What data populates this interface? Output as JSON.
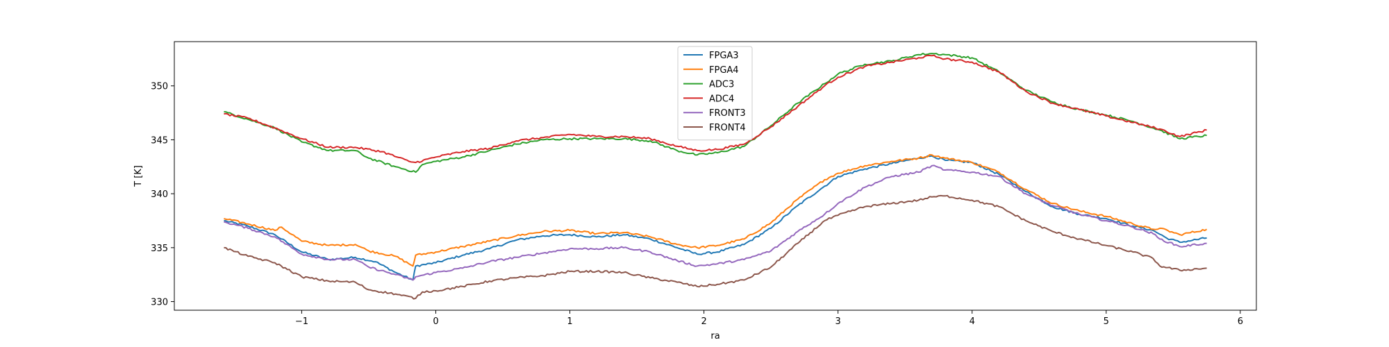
{
  "chart_data": {
    "type": "line",
    "title": "",
    "xlabel": "ra",
    "ylabel": "T [K]",
    "xlim": [
      -1.95,
      6.12
    ],
    "ylim": [
      329.2,
      354.1
    ],
    "xticks": [
      -1,
      0,
      1,
      2,
      3,
      4,
      5,
      6
    ],
    "xtick_labels": [
      "−1",
      "0",
      "1",
      "2",
      "3",
      "4",
      "5",
      "6"
    ],
    "yticks": [
      330,
      335,
      340,
      345,
      350
    ],
    "ytick_labels": [
      "330",
      "335",
      "340",
      "345",
      "350"
    ],
    "grid": false,
    "legend_position": "upper-center",
    "series": [
      {
        "name": "FPGA3",
        "color": "#1f77b4",
        "x": [
          -1.58,
          -1.4,
          -1.2,
          -1.0,
          -0.8,
          -0.6,
          -0.45,
          -0.3,
          -0.17,
          -0.15,
          0.0,
          0.2,
          0.4,
          0.6,
          0.8,
          1.0,
          1.2,
          1.4,
          1.6,
          1.8,
          1.95,
          2.1,
          2.3,
          2.5,
          2.7,
          2.9,
          3.0,
          3.2,
          3.4,
          3.6,
          3.7,
          3.8,
          4.0,
          4.2,
          4.4,
          4.6,
          4.8,
          5.0,
          5.2,
          5.35,
          5.45,
          5.55,
          5.75
        ],
        "y": [
          337.5,
          337.0,
          336.2,
          334.6,
          333.9,
          334.1,
          333.7,
          332.7,
          332.0,
          333.3,
          333.6,
          334.3,
          334.9,
          335.7,
          336.1,
          336.2,
          336.0,
          336.2,
          335.8,
          335.0,
          334.4,
          334.6,
          335.3,
          336.8,
          338.9,
          340.7,
          341.6,
          342.3,
          342.8,
          343.3,
          343.5,
          343.1,
          342.9,
          341.8,
          340.2,
          338.8,
          338.1,
          337.7,
          337.0,
          336.6,
          335.9,
          335.5,
          335.9
        ]
      },
      {
        "name": "FPGA4",
        "color": "#ff7f0e",
        "x": [
          -1.58,
          -1.4,
          -1.2,
          -1.15,
          -1.0,
          -0.8,
          -0.6,
          -0.5,
          -0.3,
          -0.17,
          -0.15,
          0.0,
          0.2,
          0.4,
          0.6,
          0.8,
          1.0,
          1.2,
          1.4,
          1.6,
          1.8,
          1.95,
          2.1,
          2.3,
          2.5,
          2.7,
          2.9,
          3.0,
          3.2,
          3.4,
          3.6,
          3.7,
          3.8,
          4.0,
          4.2,
          4.4,
          4.6,
          4.8,
          5.0,
          5.2,
          5.35,
          5.4,
          5.55,
          5.75
        ],
        "y": [
          337.7,
          337.2,
          336.6,
          336.9,
          335.6,
          335.2,
          335.3,
          334.7,
          334.2,
          333.3,
          334.3,
          334.6,
          335.1,
          335.6,
          336.1,
          336.5,
          336.6,
          336.3,
          336.4,
          336.0,
          335.3,
          335.0,
          335.2,
          335.8,
          337.3,
          339.5,
          341.3,
          341.9,
          342.6,
          343.0,
          343.3,
          343.6,
          343.3,
          342.9,
          342.0,
          340.4,
          339.1,
          338.4,
          337.9,
          337.2,
          336.7,
          336.8,
          336.2,
          336.7
        ]
      },
      {
        "name": "ADC3",
        "color": "#2ca02c",
        "x": [
          -1.58,
          -1.4,
          -1.2,
          -1.0,
          -0.8,
          -0.6,
          -0.5,
          -0.3,
          -0.15,
          -0.1,
          0.0,
          0.2,
          0.4,
          0.6,
          0.8,
          1.0,
          1.2,
          1.4,
          1.6,
          1.8,
          1.95,
          2.1,
          2.3,
          2.5,
          2.7,
          2.9,
          3.0,
          3.2,
          3.4,
          3.6,
          3.7,
          3.8,
          4.0,
          4.2,
          4.4,
          4.6,
          4.8,
          5.0,
          5.2,
          5.4,
          5.55,
          5.75
        ],
        "y": [
          347.6,
          346.9,
          346.1,
          344.8,
          344.0,
          344.0,
          343.3,
          342.5,
          342.0,
          342.7,
          343.0,
          343.4,
          344.0,
          344.6,
          345.0,
          345.1,
          345.1,
          345.1,
          344.9,
          344.0,
          343.6,
          343.8,
          344.4,
          346.3,
          348.4,
          350.2,
          351.1,
          352.0,
          352.3,
          352.9,
          353.0,
          352.9,
          352.6,
          351.3,
          349.6,
          348.5,
          347.8,
          347.3,
          346.7,
          345.9,
          345.1,
          345.4
        ]
      },
      {
        "name": "ADC4",
        "color": "#d62728",
        "x": [
          -1.58,
          -1.4,
          -1.2,
          -1.0,
          -0.8,
          -0.6,
          -0.4,
          -0.2,
          -0.15,
          0.0,
          0.2,
          0.4,
          0.6,
          0.8,
          1.0,
          1.2,
          1.4,
          1.6,
          1.8,
          1.95,
          2.1,
          2.3,
          2.5,
          2.7,
          2.9,
          3.0,
          3.2,
          3.4,
          3.6,
          3.7,
          3.8,
          4.0,
          4.2,
          4.4,
          4.6,
          4.8,
          5.0,
          5.2,
          5.4,
          5.55,
          5.75
        ],
        "y": [
          347.4,
          347.0,
          346.1,
          345.1,
          344.3,
          344.3,
          343.9,
          343.0,
          342.9,
          343.4,
          343.9,
          344.2,
          344.9,
          345.2,
          345.5,
          345.3,
          345.3,
          345.1,
          344.4,
          344.0,
          344.1,
          344.6,
          346.2,
          348.1,
          350.0,
          350.8,
          351.8,
          352.2,
          352.6,
          352.8,
          352.5,
          352.2,
          351.3,
          349.5,
          348.4,
          347.8,
          347.2,
          346.6,
          346.0,
          345.3,
          345.9
        ]
      },
      {
        "name": "FRONT3",
        "color": "#9467bd",
        "x": [
          -1.58,
          -1.4,
          -1.2,
          -1.0,
          -0.8,
          -0.6,
          -0.5,
          -0.3,
          -0.17,
          -0.15,
          0.0,
          0.2,
          0.4,
          0.6,
          0.8,
          1.0,
          1.2,
          1.4,
          1.6,
          1.8,
          1.95,
          2.1,
          2.3,
          2.5,
          2.7,
          2.9,
          3.0,
          3.2,
          3.4,
          3.6,
          3.7,
          3.8,
          4.0,
          4.2,
          4.4,
          4.6,
          4.8,
          5.0,
          5.2,
          5.35,
          5.4,
          5.55,
          5.75
        ],
        "y": [
          337.4,
          336.8,
          336.0,
          334.4,
          333.9,
          333.9,
          333.2,
          332.5,
          332.0,
          332.3,
          332.7,
          333.1,
          333.7,
          334.1,
          334.5,
          334.9,
          334.9,
          335.0,
          334.6,
          333.8,
          333.3,
          333.5,
          333.9,
          334.7,
          336.5,
          338.1,
          339.1,
          340.6,
          341.6,
          342.0,
          342.6,
          342.2,
          342.0,
          341.6,
          340.0,
          338.9,
          338.1,
          337.5,
          336.9,
          336.3,
          335.8,
          335.1,
          335.4
        ]
      },
      {
        "name": "FRONT4",
        "color": "#8c564b",
        "x": [
          -1.58,
          -1.4,
          -1.2,
          -1.0,
          -0.8,
          -0.6,
          -0.5,
          -0.3,
          -0.15,
          -0.1,
          0.0,
          0.2,
          0.4,
          0.6,
          0.8,
          1.0,
          1.2,
          1.4,
          1.6,
          1.8,
          1.95,
          2.1,
          2.3,
          2.5,
          2.7,
          2.9,
          3.0,
          3.2,
          3.4,
          3.6,
          3.7,
          3.8,
          4.0,
          4.2,
          4.4,
          4.6,
          4.8,
          5.0,
          5.2,
          5.35,
          5.4,
          5.55,
          5.75
        ],
        "y": [
          335.0,
          334.2,
          333.6,
          332.3,
          331.9,
          331.8,
          331.1,
          330.7,
          330.3,
          330.9,
          331.0,
          331.4,
          331.9,
          332.2,
          332.4,
          332.8,
          332.8,
          332.7,
          332.2,
          331.8,
          331.4,
          331.6,
          332.0,
          333.2,
          335.4,
          337.5,
          338.0,
          338.8,
          339.1,
          339.4,
          339.7,
          339.8,
          339.4,
          338.8,
          337.5,
          336.5,
          335.8,
          335.2,
          334.6,
          334.0,
          333.3,
          332.9,
          333.1
        ]
      }
    ]
  }
}
